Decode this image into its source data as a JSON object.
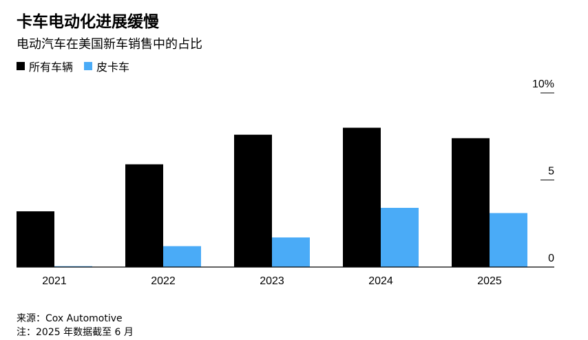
{
  "title": "卡车电动化进展缓慢",
  "subtitle": "电动汽车在美国新车销售中的占比",
  "legend": [
    {
      "label": "所有车辆",
      "color": "#000000"
    },
    {
      "label": "皮卡车",
      "color": "#4aabf7"
    }
  ],
  "source": "来源：Cox Automotive",
  "note": "注：2025 年数据截至 6 月",
  "chart_data": {
    "type": "bar",
    "categories": [
      "2021",
      "2022",
      "2023",
      "2024",
      "2025"
    ],
    "series": [
      {
        "name": "所有车辆",
        "color": "#000000",
        "values": [
          3.2,
          5.9,
          7.6,
          8.0,
          7.4
        ]
      },
      {
        "name": "皮卡车",
        "color": "#4aabf7",
        "values": [
          0.05,
          1.2,
          1.7,
          3.4,
          3.1
        ]
      }
    ],
    "ylim": [
      0,
      10
    ],
    "yticks": [
      {
        "value": 10,
        "label": "10%"
      },
      {
        "value": 5,
        "label": "5"
      },
      {
        "value": 0,
        "label": "0"
      }
    ],
    "xlabel": "",
    "ylabel": ""
  }
}
